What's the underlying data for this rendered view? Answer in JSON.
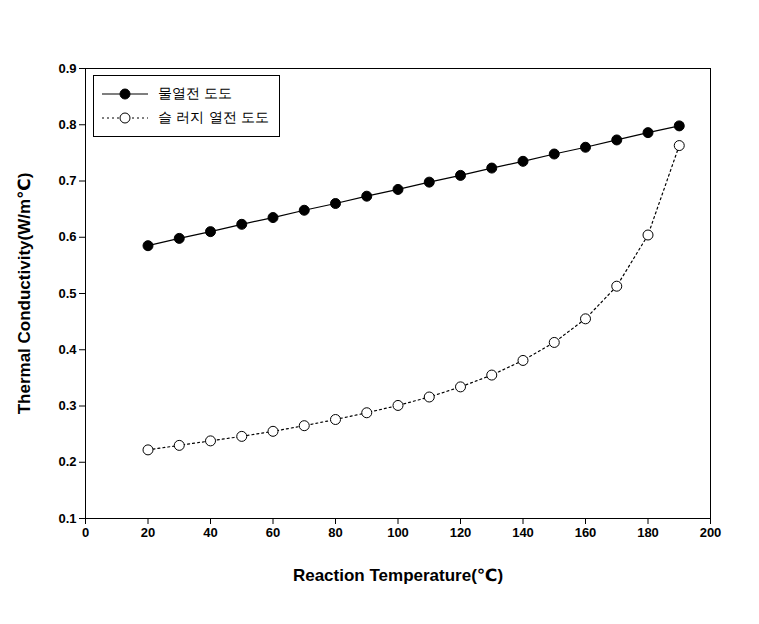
{
  "chart_data": {
    "type": "line",
    "x_label": "Reaction Temperature(℃)",
    "y_label": "Thermal Conductivity(W/m℃)",
    "x": [
      20,
      30,
      40,
      50,
      60,
      70,
      80,
      90,
      100,
      110,
      120,
      130,
      140,
      150,
      160,
      170,
      180,
      190
    ],
    "series": [
      {
        "name": "물열전 도도",
        "color": "#000000",
        "marker": "circle",
        "line_style": "solid",
        "values": [
          0.585,
          0.598,
          0.61,
          0.623,
          0.635,
          0.648,
          0.66,
          0.673,
          0.685,
          0.698,
          0.71,
          0.723,
          0.735,
          0.748,
          0.76,
          0.773,
          0.786,
          0.798
        ]
      },
      {
        "name": "슬 러지 열전 도도",
        "color": "#000000",
        "marker": "open_circle",
        "line_style": "dotted",
        "values": [
          0.222,
          0.23,
          0.238,
          0.246,
          0.255,
          0.265,
          0.276,
          0.288,
          0.301,
          0.316,
          0.334,
          0.355,
          0.381,
          0.413,
          0.455,
          0.513,
          0.604,
          0.763
        ]
      }
    ],
    "xlim": [
      0,
      200
    ],
    "xticks": [
      0,
      20,
      40,
      60,
      80,
      100,
      120,
      140,
      160,
      180,
      200
    ],
    "ylim": [
      0.1,
      0.9
    ],
    "yticks": [
      0.1,
      0.2,
      0.3,
      0.4,
      0.5,
      0.6,
      0.7,
      0.8,
      0.9
    ],
    "grid": false,
    "legend": "top-left"
  }
}
